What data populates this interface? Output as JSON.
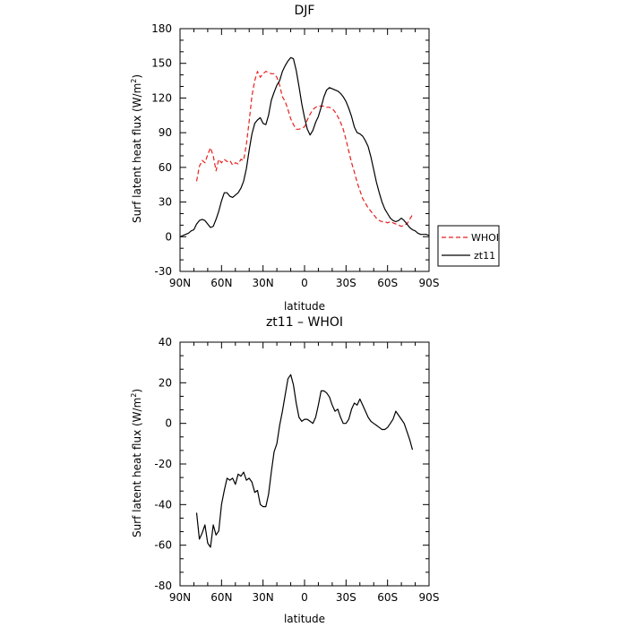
{
  "chart_data": [
    {
      "type": "line",
      "title": "DJF",
      "xlabel": "latitude",
      "ylabel": "Surf latent heat flux (W/m",
      "ylabel_sup": "2",
      "ylabel_end": ")",
      "xlim": [
        90,
        -90
      ],
      "ylim": [
        -30,
        180
      ],
      "xticks": [
        90,
        60,
        30,
        0,
        -30,
        -60,
        -90
      ],
      "xtick_labels": [
        "90N",
        "60N",
        "30N",
        "0",
        "30S",
        "60S",
        "90S"
      ],
      "yticks": [
        -30,
        0,
        30,
        60,
        90,
        120,
        150,
        180
      ],
      "ytick_labels": [
        "-30",
        "0",
        "30",
        "60",
        "90",
        "120",
        "150",
        "180"
      ],
      "grid": false,
      "legend_position": "outside-right",
      "series": [
        {
          "name": "WHOI",
          "color": "#e8201c",
          "dash": "dashed",
          "x": [
            78,
            76,
            74,
            72,
            70,
            68,
            66,
            64,
            62,
            60,
            58,
            56,
            54,
            52,
            50,
            48,
            46,
            44,
            42,
            40,
            38,
            36,
            34,
            32,
            30,
            28,
            26,
            24,
            22,
            20,
            18,
            16,
            14,
            12,
            10,
            8,
            6,
            4,
            2,
            0,
            -2,
            -4,
            -6,
            -8,
            -10,
            -12,
            -14,
            -16,
            -18,
            -20,
            -22,
            -24,
            -26,
            -28,
            -30,
            -32,
            -34,
            -36,
            -38,
            -40,
            -42,
            -44,
            -46,
            -48,
            -50,
            -52,
            -54,
            -56,
            -58,
            -60,
            -62,
            -64,
            -66,
            -68,
            -70,
            -72,
            -74,
            -76,
            -78
          ],
          "y": [
            48,
            61,
            66,
            64,
            71,
            77,
            70,
            57,
            67,
            64,
            67,
            65,
            66,
            62,
            64,
            63,
            67,
            66,
            80,
            100,
            122,
            135,
            143,
            138,
            141,
            143,
            142,
            141,
            141,
            138,
            131,
            121,
            117,
            110,
            102,
            97,
            93,
            93,
            94,
            95,
            101,
            106,
            110,
            112,
            113,
            113,
            113,
            112,
            112,
            111,
            108,
            104,
            99,
            93,
            84,
            74,
            64,
            56,
            47,
            40,
            33,
            29,
            25,
            22,
            19,
            16,
            14,
            13,
            13,
            12,
            13,
            12,
            11,
            10,
            9,
            10,
            11,
            15,
            19
          ]
        },
        {
          "name": "zt11",
          "color": "#000000",
          "dash": "solid",
          "x": [
            90,
            88,
            86,
            84,
            82,
            80,
            78,
            76,
            74,
            72,
            70,
            68,
            66,
            64,
            62,
            60,
            58,
            56,
            54,
            52,
            50,
            48,
            46,
            44,
            42,
            40,
            38,
            36,
            34,
            32,
            30,
            28,
            26,
            24,
            22,
            20,
            18,
            16,
            14,
            12,
            10,
            8,
            6,
            4,
            2,
            0,
            -2,
            -4,
            -6,
            -8,
            -10,
            -12,
            -14,
            -16,
            -18,
            -20,
            -22,
            -24,
            -26,
            -28,
            -30,
            -32,
            -34,
            -36,
            -38,
            -40,
            -42,
            -44,
            -46,
            -48,
            -50,
            -52,
            -54,
            -56,
            -58,
            -60,
            -62,
            -64,
            -66,
            -68,
            -70,
            -72,
            -74,
            -76,
            -78,
            -80,
            -82,
            -84,
            -86,
            -88,
            -90
          ],
          "y": [
            0,
            1,
            2,
            3,
            5,
            6,
            11,
            14,
            15,
            14,
            11,
            8,
            9,
            15,
            22,
            31,
            38,
            38,
            35,
            34,
            36,
            38,
            42,
            48,
            59,
            75,
            89,
            98,
            101,
            103,
            98,
            97,
            105,
            118,
            125,
            131,
            135,
            143,
            148,
            152,
            155,
            154,
            144,
            130,
            115,
            103,
            93,
            88,
            92,
            99,
            104,
            112,
            121,
            127,
            129,
            128,
            127,
            126,
            124,
            121,
            117,
            111,
            104,
            95,
            90,
            89,
            87,
            83,
            78,
            69,
            58,
            47,
            38,
            30,
            24,
            20,
            16,
            14,
            13,
            14,
            16,
            14,
            11,
            8,
            6,
            5,
            3,
            2,
            2,
            2,
            1
          ]
        }
      ]
    },
    {
      "type": "line",
      "title": "zt11 – WHOI",
      "xlabel": "latitude",
      "ylabel": "Surf latent heat flux (W/m",
      "ylabel_sup": "2",
      "ylabel_end": ")",
      "xlim": [
        90,
        -90
      ],
      "ylim": [
        -80,
        40
      ],
      "xticks": [
        90,
        60,
        30,
        0,
        -30,
        -60,
        -90
      ],
      "xtick_labels": [
        "90N",
        "60N",
        "30N",
        "0",
        "30S",
        "60S",
        "90S"
      ],
      "yticks": [
        -80,
        -60,
        -40,
        -20,
        0,
        20,
        40
      ],
      "ytick_labels": [
        "-80",
        "-60",
        "-40",
        "-20",
        "0",
        "20",
        "40"
      ],
      "grid": false,
      "series": [
        {
          "color": "#000000",
          "dash": "solid",
          "x": [
            78,
            76,
            74,
            72,
            70,
            68,
            66,
            64,
            62,
            60,
            58,
            56,
            54,
            52,
            50,
            48,
            46,
            44,
            42,
            40,
            38,
            36,
            34,
            32,
            30,
            28,
            26,
            24,
            22,
            20,
            18,
            16,
            14,
            12,
            10,
            8,
            6,
            4,
            2,
            0,
            -2,
            -4,
            -6,
            -8,
            -10,
            -12,
            -14,
            -16,
            -18,
            -20,
            -22,
            -24,
            -26,
            -28,
            -30,
            -32,
            -34,
            -36,
            -38,
            -40,
            -42,
            -44,
            -46,
            -48,
            -50,
            -52,
            -54,
            -56,
            -58,
            -60,
            -62,
            -64,
            -66,
            -68,
            -70,
            -72,
            -74,
            -76,
            -78
          ],
          "y": [
            -44,
            -57,
            -54,
            -50,
            -59,
            -61,
            -50,
            -55,
            -53,
            -40,
            -33,
            -27,
            -28,
            -27,
            -30,
            -25,
            -26,
            -24,
            -28,
            -27,
            -29,
            -34,
            -33,
            -40,
            -41,
            -41,
            -35,
            -24,
            -14,
            -10,
            -1,
            6,
            14,
            22,
            24,
            19,
            10,
            3,
            1,
            2,
            2,
            1,
            0,
            3,
            9,
            16,
            16,
            15,
            13,
            9,
            6,
            7,
            3,
            0,
            0,
            2,
            7,
            10,
            9,
            12,
            9,
            6,
            3,
            1,
            0,
            -1,
            -2,
            -3,
            -3,
            -2,
            0,
            2,
            6,
            4,
            2,
            0,
            -4,
            -8,
            -13
          ]
        }
      ]
    }
  ]
}
